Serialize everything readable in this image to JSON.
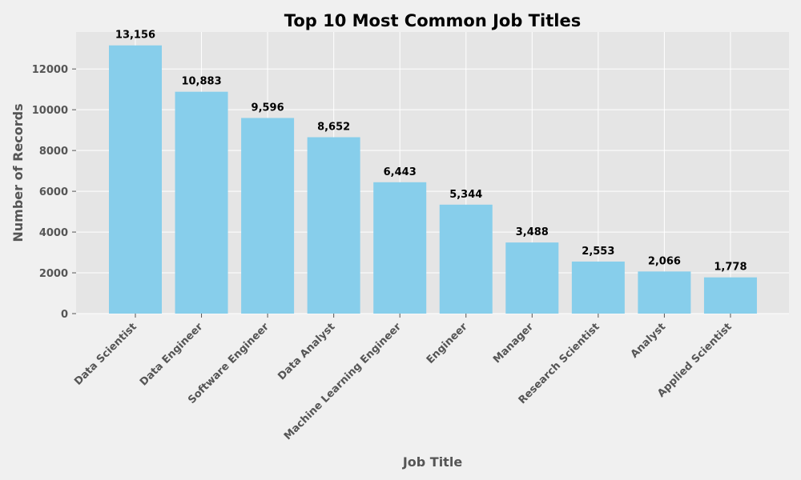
{
  "chart_data": {
    "type": "bar",
    "title": "Top 10 Most Common Job Titles",
    "xlabel": "Job Title",
    "ylabel": "Number of Records",
    "categories": [
      "Data Scientist",
      "Data Engineer",
      "Software Engineer",
      "Data Analyst",
      "Machine Learning Engineer",
      "Engineer",
      "Manager",
      "Research Scientist",
      "Analyst",
      "Applied Scientist"
    ],
    "values": [
      13156,
      10883,
      9596,
      8652,
      6443,
      5344,
      3488,
      2553,
      2066,
      1778
    ],
    "data_labels": [
      "13,156",
      "10,883",
      "9,596",
      "8,652",
      "6,443",
      "5,344",
      "3,488",
      "2,553",
      "2,066",
      "1,778"
    ],
    "y_ticks": [
      0,
      2000,
      4000,
      6000,
      8000,
      10000,
      12000
    ],
    "ylim": [
      0,
      13813
    ],
    "grid": true,
    "colors": {
      "bar": "#87ceeb",
      "plot_background": "#e5e5e5",
      "figure_background": "#f0f0f0",
      "grid": "#ffffff"
    }
  }
}
